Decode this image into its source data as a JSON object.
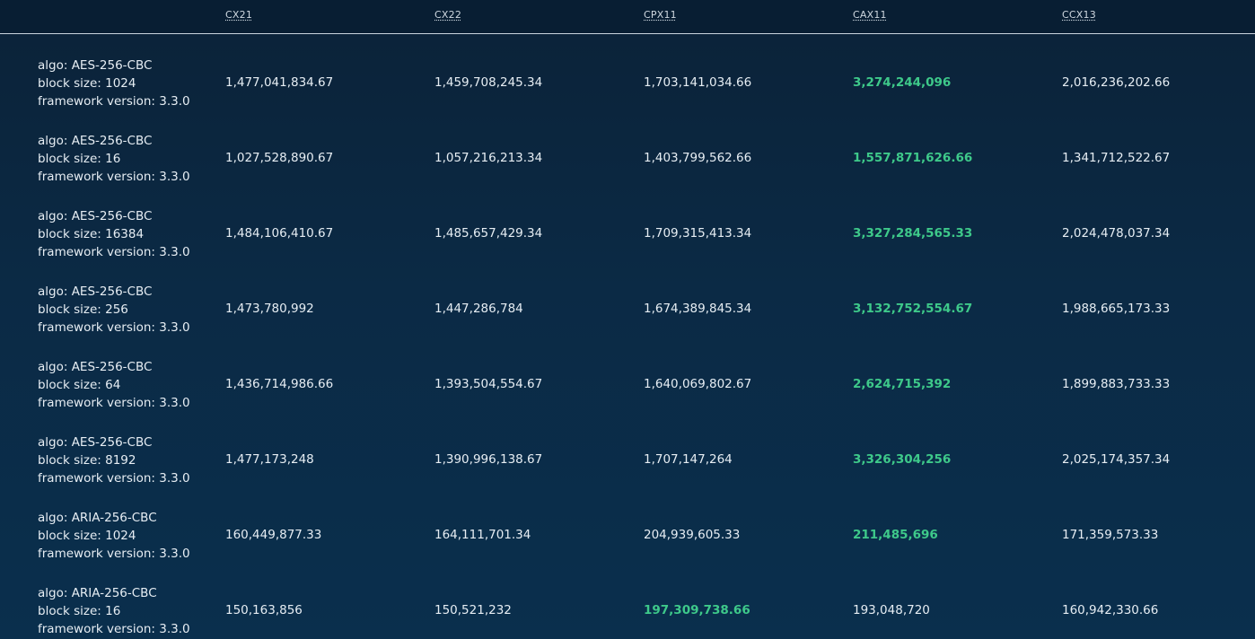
{
  "columns": [
    "CX21",
    "CX22",
    "CPX11",
    "CAX11",
    "CCX13"
  ],
  "colors": {
    "best": "#3ec98a",
    "text": "#e6edf3",
    "background": "#0b2a45"
  },
  "rows": [
    {
      "algo": "algo: AES-256-CBC",
      "block": "block size: 1024",
      "framework": "framework version: 3.3.0",
      "values": [
        "1,477,041,834.67",
        "1,459,708,245.34",
        "1,703,141,034.66",
        "3,274,244,096",
        "2,016,236,202.66"
      ],
      "best_index": 3
    },
    {
      "algo": "algo: AES-256-CBC",
      "block": "block size: 16",
      "framework": "framework version: 3.3.0",
      "values": [
        "1,027,528,890.67",
        "1,057,216,213.34",
        "1,403,799,562.66",
        "1,557,871,626.66",
        "1,341,712,522.67"
      ],
      "best_index": 3
    },
    {
      "algo": "algo: AES-256-CBC",
      "block": "block size: 16384",
      "framework": "framework version: 3.3.0",
      "values": [
        "1,484,106,410.67",
        "1,485,657,429.34",
        "1,709,315,413.34",
        "3,327,284,565.33",
        "2,024,478,037.34"
      ],
      "best_index": 3
    },
    {
      "algo": "algo: AES-256-CBC",
      "block": "block size: 256",
      "framework": "framework version: 3.3.0",
      "values": [
        "1,473,780,992",
        "1,447,286,784",
        "1,674,389,845.34",
        "3,132,752,554.67",
        "1,988,665,173.33"
      ],
      "best_index": 3
    },
    {
      "algo": "algo: AES-256-CBC",
      "block": "block size: 64",
      "framework": "framework version: 3.3.0",
      "values": [
        "1,436,714,986.66",
        "1,393,504,554.67",
        "1,640,069,802.67",
        "2,624,715,392",
        "1,899,883,733.33"
      ],
      "best_index": 3
    },
    {
      "algo": "algo: AES-256-CBC",
      "block": "block size: 8192",
      "framework": "framework version: 3.3.0",
      "values": [
        "1,477,173,248",
        "1,390,996,138.67",
        "1,707,147,264",
        "3,326,304,256",
        "2,025,174,357.34"
      ],
      "best_index": 3
    },
    {
      "algo": "algo: ARIA-256-CBC",
      "block": "block size: 1024",
      "framework": "framework version: 3.3.0",
      "values": [
        "160,449,877.33",
        "164,111,701.34",
        "204,939,605.33",
        "211,485,696",
        "171,359,573.33"
      ],
      "best_index": 3
    },
    {
      "algo": "algo: ARIA-256-CBC",
      "block": "block size: 16",
      "framework": "framework version: 3.3.0",
      "values": [
        "150,163,856",
        "150,521,232",
        "197,309,738.66",
        "193,048,720",
        "160,942,330.66"
      ],
      "best_index": 2
    }
  ]
}
